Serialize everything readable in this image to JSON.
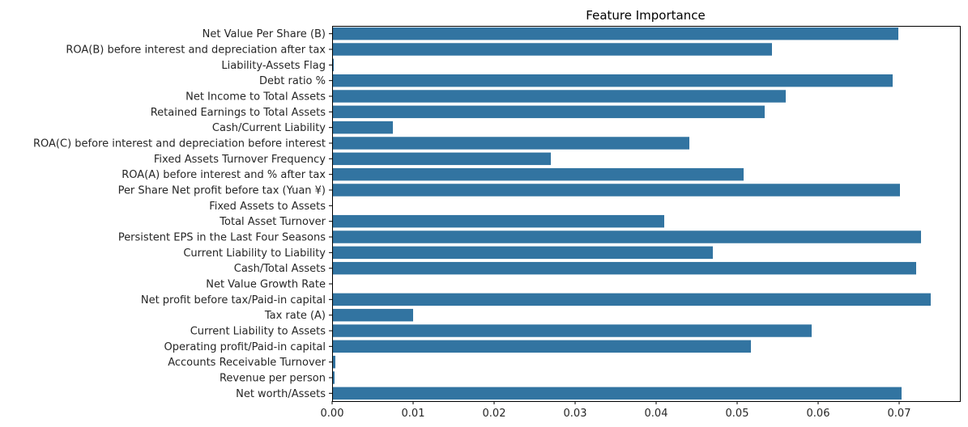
{
  "chart_data": {
    "type": "bar",
    "orientation": "horizontal",
    "title": "Feature Importance",
    "xlabel": "",
    "ylabel": "",
    "xlim": [
      0,
      0.0775
    ],
    "xticks": [
      "0.00",
      "0.01",
      "0.02",
      "0.03",
      "0.04",
      "0.05",
      "0.06",
      "0.07"
    ],
    "xtick_values": [
      0,
      0.01,
      0.02,
      0.03,
      0.04,
      0.05,
      0.06,
      0.07
    ],
    "bar_color": "#3274a1",
    "grid": false,
    "categories": [
      " Net Value Per Share (B)",
      " ROA(B) before interest and depreciation after tax",
      " Liability-Assets Flag",
      " Debt ratio %",
      " Net Income to Total Assets",
      " Retained Earnings to Total Assets",
      " Cash/Current Liability",
      " ROA(C) before interest and depreciation before interest",
      " Fixed Assets Turnover Frequency",
      " ROA(A) before interest and % after tax",
      " Per Share Net profit before tax (Yuan ¥)",
      " Fixed Assets to Assets",
      " Total Asset Turnover",
      " Persistent EPS in the Last Four Seasons",
      " Current Liability to Liability",
      " Cash/Total Assets",
      " Net Value Growth Rate",
      " Net profit before tax/Paid-in capital",
      " Tax rate (A)",
      " Current Liability to Assets",
      " Operating profit/Paid-in capital",
      " Accounts Receivable Turnover",
      " Revenue per person",
      " Net worth/Assets"
    ],
    "values": [
      0.0699,
      0.0543,
      0.0002,
      0.0692,
      0.056,
      0.0534,
      0.0075,
      0.0441,
      0.027,
      0.0508,
      0.0701,
      0.0,
      0.041,
      0.0727,
      0.047,
      0.0721,
      0.0,
      0.0739,
      0.01,
      0.0592,
      0.0517,
      0.0004,
      0.0003,
      0.0703
    ]
  }
}
